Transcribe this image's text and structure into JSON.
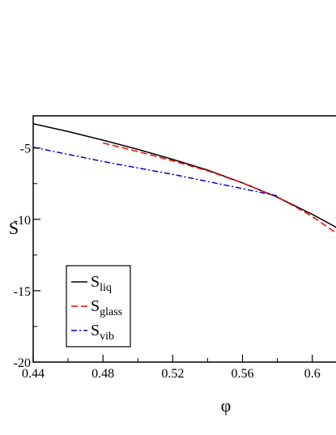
{
  "chart_data": {
    "type": "line",
    "xlabel": "φ",
    "ylabel": "S",
    "xlim": [
      0.44,
      0.6136
    ],
    "ylim": [
      -20,
      -2.75
    ],
    "x_ticks": [
      0.44,
      0.48,
      0.52,
      0.56,
      0.6
    ],
    "x_tick_labels": [
      "0.44",
      "0.48",
      "0.52",
      "0.56",
      "0.6"
    ],
    "y_ticks": [
      -5,
      -10,
      -15,
      -20
    ],
    "y_tick_labels": [
      "-5",
      "-10",
      "-15",
      "-20"
    ],
    "grid": false,
    "legend_position": "lower-left",
    "series": [
      {
        "key": "liq",
        "name_main": "S",
        "name_sub": "liq",
        "color": "#000000",
        "dash": "none",
        "x": [
          0.44,
          0.46,
          0.48,
          0.5,
          0.52,
          0.54,
          0.56,
          0.58,
          0.59,
          0.6,
          0.6136
        ],
        "y": [
          -3.3,
          -3.85,
          -4.45,
          -5.1,
          -5.8,
          -6.55,
          -7.45,
          -8.45,
          -9.05,
          -9.65,
          -10.55
        ]
      },
      {
        "key": "glass",
        "name_main": "S",
        "name_sub": "glass",
        "color": "#ff0000",
        "dash": "8,4",
        "x": [
          0.48,
          0.5,
          0.52,
          0.54,
          0.56,
          0.58,
          0.59,
          0.6,
          0.6136
        ],
        "y": [
          -4.65,
          -5.25,
          -5.9,
          -6.6,
          -7.45,
          -8.45,
          -9.1,
          -9.8,
          -10.95
        ]
      },
      {
        "key": "vib",
        "name_main": "S",
        "name_sub": "vib",
        "color": "#0000cc",
        "dash": "7,3,2,3",
        "x": [
          0.44,
          0.46,
          0.48,
          0.5,
          0.52,
          0.54,
          0.56,
          0.58
        ],
        "y": [
          -4.95,
          -5.45,
          -5.95,
          -6.4,
          -6.85,
          -7.35,
          -7.85,
          -8.35
        ]
      }
    ]
  }
}
